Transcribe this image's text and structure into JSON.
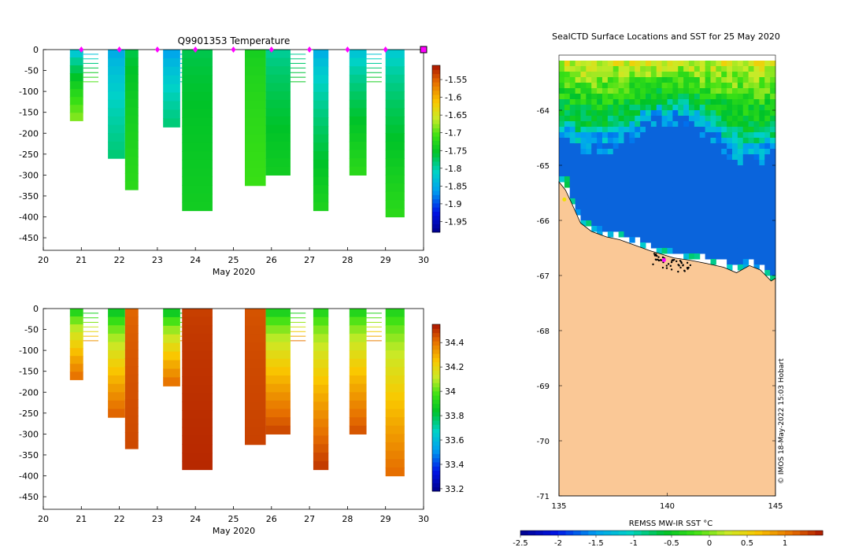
{
  "colors": {
    "land": "#fac896",
    "marker": "#ff00ff",
    "sea_ice_blue": "#0a64dc"
  },
  "chart_data": [
    {
      "id": "temperature",
      "type": "heatmap",
      "title": "Q9901353  Temperature",
      "xlabel": "May 2020",
      "ylabel": "",
      "xlim": [
        20,
        30
      ],
      "ylim": [
        -480,
        0
      ],
      "xticks": [
        "20",
        "21",
        "22",
        "23",
        "24",
        "25",
        "26",
        "27",
        "28",
        "29",
        "30"
      ],
      "yticks": [
        "0",
        "-50",
        "-100",
        "-150",
        "-200",
        "-250",
        "-300",
        "-350",
        "-400",
        "-450"
      ],
      "colorbar": {
        "min": -1.98,
        "max": -1.51,
        "ticks": [
          "-1.55",
          "-1.6",
          "-1.65",
          "-1.7",
          "-1.75",
          "-1.8",
          "-1.85",
          "-1.9",
          "-1.95"
        ],
        "tick_values": [
          -1.55,
          -1.6,
          -1.65,
          -1.7,
          -1.75,
          -1.8,
          -1.85,
          -1.9,
          -1.95
        ]
      },
      "markers_x": [
        21,
        22,
        23,
        24,
        25,
        26,
        27,
        28,
        29,
        30
      ],
      "profiles": [
        {
          "x0": 20.7,
          "x1": 21.05,
          "bottom": -170,
          "surface": -1.85,
          "deep": -1.68
        },
        {
          "x0": 21.7,
          "x1": 22.15,
          "bottom": -260,
          "surface": -1.86,
          "deep": -1.78
        },
        {
          "x0": 22.15,
          "x1": 22.5,
          "bottom": -335,
          "surface": -1.77,
          "deep": -1.72
        },
        {
          "x0": 23.15,
          "x1": 23.6,
          "bottom": -185,
          "surface": -1.87,
          "deep": -1.78
        },
        {
          "x0": 23.65,
          "x1": 24.45,
          "bottom": -385,
          "surface": -1.77,
          "deep": -1.74
        },
        {
          "x0": 25.3,
          "x1": 25.85,
          "bottom": -325,
          "surface": -1.74,
          "deep": -1.71
        },
        {
          "x0": 25.85,
          "x1": 26.5,
          "bottom": -300,
          "surface": -1.8,
          "deep": -1.74
        },
        {
          "x0": 27.1,
          "x1": 27.5,
          "bottom": -385,
          "surface": -1.86,
          "deep": -1.73
        },
        {
          "x0": 28.05,
          "x1": 28.5,
          "bottom": -300,
          "surface": -1.84,
          "deep": -1.72
        },
        {
          "x0": 29.0,
          "x1": 29.5,
          "bottom": -400,
          "surface": -1.83,
          "deep": -1.72
        }
      ]
    },
    {
      "id": "salinity",
      "type": "heatmap",
      "title": "",
      "xlabel": "May 2020",
      "ylabel": "",
      "xlim": [
        20,
        30
      ],
      "ylim": [
        -480,
        0
      ],
      "xticks": [
        "20",
        "21",
        "22",
        "23",
        "24",
        "25",
        "26",
        "27",
        "28",
        "29",
        "30"
      ],
      "yticks": [
        "0",
        "-50",
        "-100",
        "-150",
        "-200",
        "-250",
        "-300",
        "-350",
        "-400",
        "-450"
      ],
      "colorbar": {
        "min": 33.18,
        "max": 34.55,
        "ticks": [
          "34.4",
          "34.2",
          "34",
          "33.8",
          "33.6",
          "33.4",
          "33.2"
        ],
        "tick_values": [
          34.4,
          34.2,
          34.0,
          33.8,
          33.6,
          33.4,
          33.2
        ]
      },
      "profiles": [
        {
          "x0": 20.7,
          "x1": 21.05,
          "bottom": -170,
          "surface": 33.82,
          "deep": 34.42
        },
        {
          "x0": 21.7,
          "x1": 22.15,
          "bottom": -260,
          "surface": 33.78,
          "deep": 34.44
        },
        {
          "x0": 22.15,
          "x1": 22.5,
          "bottom": -335,
          "surface": 34.42,
          "deep": 34.47
        },
        {
          "x0": 23.15,
          "x1": 23.6,
          "bottom": -185,
          "surface": 33.76,
          "deep": 34.42
        },
        {
          "x0": 23.65,
          "x1": 24.45,
          "bottom": -385,
          "surface": 34.48,
          "deep": 34.52
        },
        {
          "x0": 25.3,
          "x1": 25.85,
          "bottom": -325,
          "surface": 34.45,
          "deep": 34.48
        },
        {
          "x0": 25.85,
          "x1": 26.5,
          "bottom": -300,
          "surface": 33.82,
          "deep": 34.48
        },
        {
          "x0": 27.1,
          "x1": 27.5,
          "bottom": -385,
          "surface": 33.85,
          "deep": 34.5
        },
        {
          "x0": 28.05,
          "x1": 28.5,
          "bottom": -300,
          "surface": 33.84,
          "deep": 34.46
        },
        {
          "x0": 29.0,
          "x1": 29.5,
          "bottom": -400,
          "surface": 33.86,
          "deep": 34.42
        }
      ]
    },
    {
      "id": "sst_map",
      "type": "heatmap",
      "title": "SealCTD Surface Locations and SST for 25 May 2020",
      "xlabel": "",
      "ylabel": "",
      "xlim": [
        135,
        145
      ],
      "ylim": [
        -71,
        -63
      ],
      "xticks": [
        "135",
        "140",
        "145"
      ],
      "yticks": [
        "-64",
        "-65",
        "-66",
        "-67",
        "-68",
        "-69",
        "-70",
        "-71"
      ],
      "colorbar": {
        "label": "REMSS MW-IR SST °C",
        "min": -2.5,
        "max": 1.5,
        "ticks": [
          "-2.5",
          "-2",
          "-1.5",
          "-1",
          "-0.5",
          "0",
          "0.5",
          "1"
        ],
        "tick_values": [
          -2.5,
          -2,
          -1.5,
          -1,
          -0.5,
          0,
          0.5,
          1
        ]
      },
      "credit": "© IMOS 18-May-2022 15:03 Hobart"
    }
  ]
}
